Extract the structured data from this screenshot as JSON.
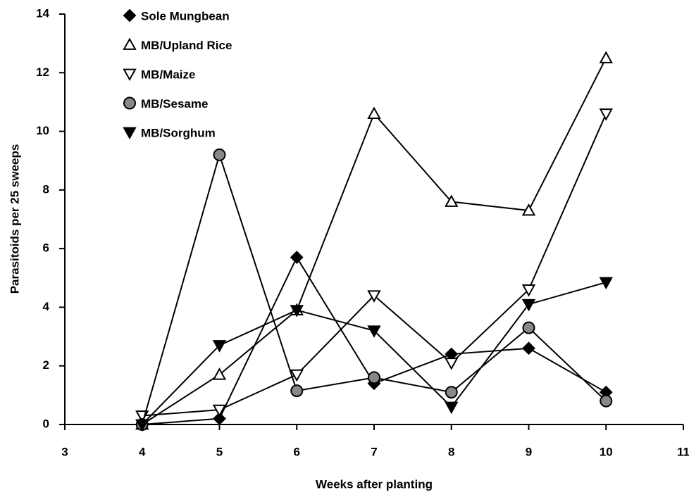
{
  "chart_data": {
    "type": "line",
    "x_label": "Weeks after planting",
    "y_label": "Parasitoids per 25 sweeps",
    "x": [
      4,
      5,
      6,
      7,
      8,
      9,
      10
    ],
    "xlim": [
      3,
      11
    ],
    "xticks": [
      3,
      4,
      5,
      6,
      7,
      8,
      9,
      10,
      11
    ],
    "ylim": [
      0,
      14
    ],
    "yticks": [
      0,
      2,
      4,
      6,
      8,
      10,
      12,
      14
    ],
    "legend": "top-left",
    "series": [
      {
        "name": "Sole Mungbean",
        "color": "#000000",
        "marker": "diamond-filled",
        "values": [
          0,
          0.2,
          5.7,
          1.4,
          2.4,
          2.6,
          1.1
        ]
      },
      {
        "name": "MB/Upland Rice",
        "color": "#000000",
        "marker": "triangle-open",
        "values": [
          0,
          1.7,
          3.9,
          10.6,
          7.6,
          7.3,
          12.5
        ]
      },
      {
        "name": "MB/Maize",
        "color": "#000000",
        "marker": "down-triangle-open",
        "values": [
          0.3,
          0.5,
          1.7,
          4.4,
          2.1,
          4.6,
          10.6
        ]
      },
      {
        "name": "MB/Sesame",
        "color": "#000000",
        "marker": "circle-hatched",
        "values": [
          0,
          9.2,
          1.15,
          1.6,
          1.1,
          3.3,
          0.8
        ]
      },
      {
        "name": "MB/Sorghum",
        "color": "#000000",
        "marker": "down-triangle-filled",
        "values": [
          0,
          2.7,
          3.9,
          3.2,
          0.6,
          4.1,
          4.85
        ]
      }
    ]
  }
}
